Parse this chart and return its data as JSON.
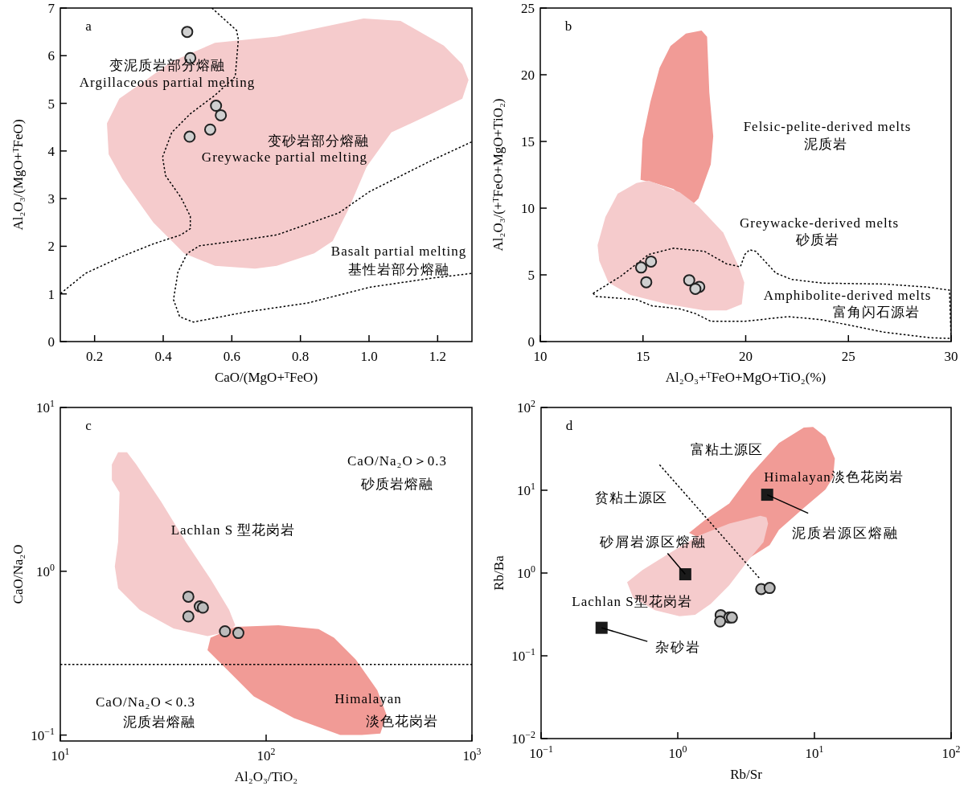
{
  "chart_data": [
    {
      "type": "scatter",
      "title": "a",
      "xlabel": "CaO/(MgO+ᵀFeO)",
      "ylabel": "Al₂O₃/(MgO+ᵀFeO)",
      "xlim": [
        0.1,
        1.3
      ],
      "ylim": [
        0,
        7
      ],
      "xticks": [
        0.2,
        0.4,
        0.6,
        0.8,
        {
          "value": 1,
          "label": "1.0"
        },
        1.2
      ],
      "yticks": [
        0,
        1,
        2,
        3,
        4,
        5,
        6,
        7
      ],
      "series": [
        {
          "type": "area",
          "color": "#f5cbcc",
          "x": [
            0.236,
            0.272,
            0.344,
            0.425,
            0.551,
            0.732,
            0.984,
            1.092,
            1.218,
            1.272,
            1.29,
            1.272,
            1.182,
            1.065,
            0.993,
            0.939,
            0.894,
            0.84,
            0.731,
            0.668,
            0.551,
            0.461,
            0.371,
            0.281,
            0.241
          ],
          "values": [
            4.58,
            5.1,
            5.46,
            5.88,
            6.27,
            6.4,
            6.78,
            6.73,
            6.21,
            5.82,
            5.49,
            5.1,
            4.78,
            4.39,
            3.67,
            2.76,
            2.11,
            1.85,
            1.59,
            1.53,
            1.59,
            1.85,
            2.5,
            3.41,
            3.93
          ]
        },
        {
          "type": "line",
          "color": "#000000",
          "line_style": "dotted",
          "x": [
            0.542,
            0.614,
            0.619,
            0.61,
            0.551,
            0.479,
            0.425,
            0.398,
            0.407,
            0.452,
            0.479,
            0.479,
            0.452,
            0.371,
            0.281,
            0.173,
            0.101
          ],
          "values": [
            7.0,
            6.53,
            6.34,
            5.56,
            5.17,
            4.78,
            4.39,
            3.87,
            3.48,
            3.02,
            2.63,
            2.37,
            2.24,
            2.05,
            1.79,
            1.43,
            1.01
          ]
        },
        {
          "type": "line",
          "color": "#000000",
          "line_style": "dotted",
          "x": [
            1.299,
            1.182,
            1.002,
            0.912,
            0.732,
            0.641,
            0.506,
            0.47,
            0.443,
            0.43,
            0.448,
            0.488,
            0.641,
            0.822,
            1.002,
            1.182,
            1.299
          ],
          "values": [
            4.19,
            3.8,
            3.15,
            2.7,
            2.24,
            2.14,
            2.01,
            1.85,
            1.46,
            0.88,
            0.52,
            0.41,
            0.62,
            0.81,
            1.14,
            1.33,
            1.43
          ]
        },
        {
          "type": "scatter",
          "marker": "circle",
          "color": "#d0d0d0",
          "x": [
            0.47,
            0.479,
            0.554,
            0.568,
            0.537,
            0.477
          ],
          "values": [
            6.5,
            5.95,
            4.95,
            4.75,
            4.45,
            4.3
          ]
        }
      ],
      "annotations": [
        "变泥质岩部分熔融",
        "Argillaceous partial melting",
        "变砂岩部分熔融",
        "Greywacke partial melting",
        "Basalt partial melting",
        "基性岩部分熔融"
      ]
    },
    {
      "type": "scatter",
      "title": "b",
      "xlabel": "Al₂O₃+ᵀFeO+MgO+TiO₂(%)",
      "ylabel": "Al₂O₃/(+ᵀFeO+MgO+TiO₂)",
      "xlim": [
        10,
        30
      ],
      "ylim": [
        0,
        25
      ],
      "xticks": [
        10,
        15,
        20,
        25,
        30
      ],
      "yticks": [
        0,
        5,
        10,
        15,
        20,
        25
      ],
      "series": [
        {
          "type": "area",
          "color": "#f19b96",
          "x": [
            14.88,
            14.98,
            15.36,
            15.81,
            16.34,
            17.09,
            17.85,
            18.12,
            18.23,
            18.42,
            18.3,
            17.7,
            17.4,
            16.49,
            15.58
          ],
          "values": [
            12.13,
            15.16,
            17.96,
            20.52,
            22.15,
            23.09,
            23.32,
            22.85,
            18.66,
            15.39,
            13.29,
            10.73,
            10.26,
            11.43,
            11.89
          ]
        },
        {
          "type": "area",
          "color": "#f5cbcc",
          "x": [
            13.77,
            14.68,
            15.28,
            16.79,
            17.7,
            18.91,
            19.66,
            19.93,
            19.81,
            19.06,
            18.0,
            16.19,
            14.38,
            13.32,
            12.87,
            12.79,
            13.17
          ],
          "values": [
            11.08,
            11.89,
            12.06,
            11.19,
            10.14,
            8.16,
            5.6,
            4.43,
            2.8,
            2.33,
            2.33,
            2.8,
            3.5,
            4.43,
            6.06,
            7.23,
            9.33
          ]
        },
        {
          "type": "line",
          "color": "#000000",
          "line_style": "dotted",
          "x": [
            12.57,
            13.92,
            15.28,
            16.49,
            17.25,
            18.0,
            19.06,
            19.74,
            19.96,
            20.19,
            20.49,
            21.47,
            22.23,
            23.74,
            26.75,
            28.87,
            29.92,
            30.0
          ],
          "values": [
            3.61,
            4.9,
            6.53,
            7.0,
            6.88,
            6.76,
            5.83,
            5.6,
            6.53,
            6.88,
            6.76,
            5.13,
            4.66,
            4.38,
            4.31,
            4.08,
            3.85,
            0.23
          ]
        },
        {
          "type": "line",
          "color": "#000000",
          "line_style": "dotted",
          "x": [
            12.57,
            12.72,
            14.68,
            15.43,
            16.79,
            17.55,
            18.3,
            19.96,
            22.08,
            23.74,
            26.75,
            29.02,
            30.0
          ],
          "values": [
            3.61,
            3.38,
            3.15,
            2.68,
            2.45,
            2.1,
            1.52,
            1.52,
            1.87,
            1.63,
            0.7,
            0.28,
            0.23
          ]
        },
        {
          "type": "scatter",
          "marker": "circle",
          "color": "#d0d0d0",
          "x": [
            14.91,
            15.39,
            15.16,
            17.25,
            17.74,
            17.55
          ],
          "values": [
            5.55,
            6.0,
            4.45,
            4.6,
            4.1,
            3.95
          ]
        }
      ],
      "annotations": [
        "Felsic-pelite-derived melts",
        "泥质岩",
        "Greywacke-derived melts",
        "砂质岩",
        "Amphibolite-derived melts",
        "富角闪石源岩"
      ]
    },
    {
      "type": "scatter",
      "title": "c",
      "xlabel": "Al₂O₃/TiO₂",
      "ylabel": "CaO/Na₂O",
      "log": "xy",
      "xlim": [
        10,
        1000
      ],
      "ylim": [
        0.092,
        10
      ],
      "xticks": [
        {
          "value": 10,
          "label": "10$^{1}$"
        },
        {
          "value": 100,
          "label": "10$^{2}$"
        },
        {
          "value": 1000,
          "label": "10$^{3}$"
        }
      ],
      "yticks": [
        {
          "value": 0.1,
          "label": "10$^{−1}$"
        },
        {
          "value": 1,
          "label": "10$^{0}$"
        },
        {
          "value": 10,
          "label": "10$^{1}$"
        }
      ],
      "ref_lines": [
        {
          "axis": "y",
          "value": 0.27,
          "color": "#000000",
          "line_style": "dotted"
        }
      ],
      "series": [
        {
          "type": "area",
          "color": "#f5cbcc",
          "x": [
            17.8,
            19.1,
            21.1,
            23.4,
            30.9,
            40.7,
            53.7,
            66.1,
            70.8,
            66.1,
            51.9,
            35.5,
            24.3,
            19.1,
            18.4,
            19.1,
            19.4,
            17.8
          ],
          "values": [
            4.48,
            5.32,
            5.32,
            4.48,
            2.66,
            1.51,
            0.897,
            0.581,
            0.468,
            0.429,
            0.402,
            0.448,
            0.581,
            0.787,
            1.07,
            1.51,
            3.03,
            3.61
          ]
        },
        {
          "type": "area",
          "color": "#f19b96",
          "x": [
            53.7,
            70.8,
            114.8,
            179.9,
            213.8,
            272.3,
            346.7,
            384.6,
            358.9,
            291.7,
            229.1,
            136.5,
            87.1,
            66.1,
            51.9
          ],
          "values": [
            0.393,
            0.457,
            0.468,
            0.444,
            0.393,
            0.29,
            0.188,
            0.133,
            0.102,
            0.1,
            0.1,
            0.127,
            0.172,
            0.244,
            0.33
          ]
        },
        {
          "type": "scatter",
          "marker": "circle",
          "color": "#bcbcbc",
          "x": [
            41.9,
            47.6,
            49.3,
            41.9,
            63.1,
            73.3
          ],
          "values": [
            0.7,
            0.61,
            0.6,
            0.53,
            0.43,
            0.42
          ]
        }
      ],
      "annotations": [
        "CaO/Na₂O＞0.3",
        "砂质岩熔融",
        "Lachlan S 型花岗岩",
        "CaO/Na₂O＜0.3",
        "泥质岩熔融",
        "Himalayan",
        "淡色花岗岩"
      ]
    },
    {
      "type": "scatter",
      "title": "d",
      "xlabel": "Rb/Sr",
      "ylabel": "Rb/Ba",
      "log": "xy",
      "xlim": [
        0.1,
        100
      ],
      "ylim": [
        0.01,
        100
      ],
      "xticks": [
        {
          "value": 0.1,
          "label": "10$^{−1}$"
        },
        {
          "value": 1,
          "label": "10$^{0}$"
        },
        {
          "value": 10,
          "label": "10$^{1}$"
        },
        {
          "value": 100,
          "label": "10$^{2}$"
        }
      ],
      "yticks": [
        {
          "value": 0.01,
          "label": "10$^{−2}$"
        },
        {
          "value": 0.1,
          "label": "10$^{−1}$"
        },
        {
          "value": 1,
          "label": "10$^{0}$"
        },
        {
          "value": 10,
          "label": "10$^{1}$"
        },
        {
          "value": 100,
          "label": "10$^{2}$"
        }
      ],
      "series": [
        {
          "type": "area",
          "color": "#f19b96",
          "x": [
            1.21,
            1.57,
            2.38,
            3.44,
            5.5,
            8.36,
            9.77,
            12.05,
            14.1,
            13.7,
            12.05,
            8.36,
            5.5,
            4.7,
            3.1
          ],
          "values": [
            3.06,
            4.33,
            6.93,
            15.7,
            37.2,
            57.1,
            58.1,
            44.2,
            24.2,
            14.4,
            10.2,
            6.1,
            3.33,
            2.17,
            1.41
          ]
        },
        {
          "type": "area",
          "color": "#f5cbcc",
          "x": [
            0.426,
            0.552,
            0.839,
            1.41,
            2.38,
            4.02,
            4.46,
            4.58,
            4.24,
            3.26,
            2.38,
            1.74,
            1.34,
            1.03,
            0.681,
            0.472
          ],
          "values": [
            0.773,
            1.09,
            1.67,
            2.81,
            3.96,
            4.92,
            4.71,
            3.96,
            2.37,
            1.41,
            0.71,
            0.423,
            0.313,
            0.3,
            0.356,
            0.502
          ]
        },
        {
          "type": "line",
          "color": "#000000",
          "line_style": "dotted",
          "x": [
            0.736,
            4.02
          ],
          "values": [
            20.3,
            0.841
          ]
        },
        {
          "type": "scatter",
          "marker": "circle",
          "color": "#bcbcbc",
          "x": [
            4.08,
            4.7,
            2.06,
            2.38,
            2.49,
            2.04
          ],
          "values": [
            0.64,
            0.66,
            0.31,
            0.29,
            0.29,
            0.26
          ]
        },
        {
          "type": "scatter",
          "marker": "square",
          "color": "#1a1a1a",
          "x": [
            0.277,
            1.135,
            4.51
          ],
          "values": [
            0.218,
            0.966,
            8.83
          ]
        }
      ],
      "annotations": [
        "富粘土源区",
        "贫粘土源区",
        "Himalayan淡色花岗岩",
        "Lachlan S型花岗岩",
        {
          "text": "杂砂岩",
          "x": 0.277,
          "y": 0.218
        },
        {
          "text": "砂屑岩源区熔融",
          "x": 1.135,
          "y": 0.966
        },
        {
          "text": "泥质岩源区熔融",
          "x": 4.51,
          "y": 8.83
        }
      ]
    }
  ]
}
